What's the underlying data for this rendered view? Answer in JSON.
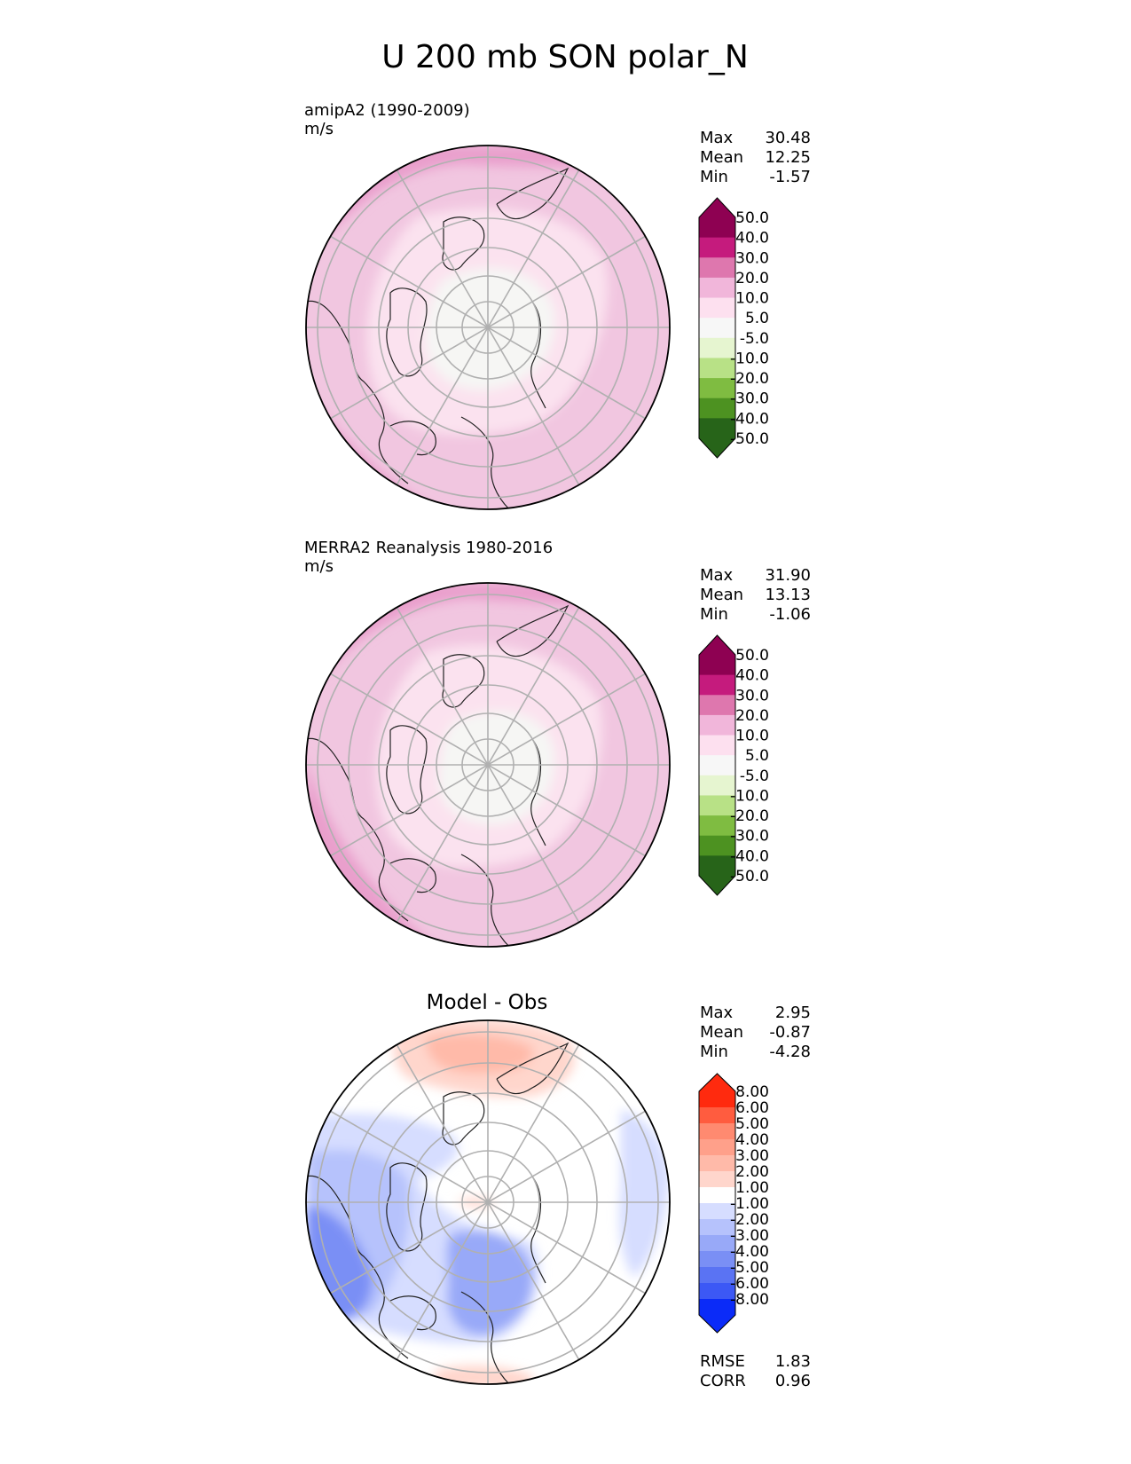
{
  "title": "U 200 mb SON polar_N",
  "panels": [
    {
      "id": "test",
      "label_line1": "amipA2 (1990-2009)",
      "label_line2": "m/s",
      "heading": "",
      "stats": [
        {
          "name": "Max",
          "value": "30.48"
        },
        {
          "name": "Mean",
          "value": "12.25"
        },
        {
          "name": "Min",
          "value": "-1.57"
        }
      ],
      "colorbar": {
        "ticks": [
          "50.0",
          "40.0",
          "30.0",
          "20.0",
          "10.0",
          "5.0",
          "-5.0",
          "-10.0",
          "-20.0",
          "-30.0",
          "-40.0",
          "-50.0"
        ],
        "colors_top_to_bottom": [
          "#8e0152",
          "#c51b7d",
          "#de77ae",
          "#f1b6da",
          "#fde0ef",
          "#f7f7f7",
          "#e6f5d0",
          "#b8e186",
          "#7fbc41",
          "#4d9221",
          "#276419"
        ],
        "max_color": "#8e0152",
        "min_color": "#276419"
      },
      "extra_stats": []
    },
    {
      "id": "ref",
      "label_line1": "MERRA2 Reanalysis 1980-2016",
      "label_line2": "m/s",
      "heading": "",
      "stats": [
        {
          "name": "Max",
          "value": "31.90"
        },
        {
          "name": "Mean",
          "value": "13.13"
        },
        {
          "name": "Min",
          "value": "-1.06"
        }
      ],
      "colorbar": {
        "ticks": [
          "50.0",
          "40.0",
          "30.0",
          "20.0",
          "10.0",
          "5.0",
          "-5.0",
          "-10.0",
          "-20.0",
          "-30.0",
          "-40.0",
          "-50.0"
        ],
        "colors_top_to_bottom": [
          "#8e0152",
          "#c51b7d",
          "#de77ae",
          "#f1b6da",
          "#fde0ef",
          "#f7f7f7",
          "#e6f5d0",
          "#b8e186",
          "#7fbc41",
          "#4d9221",
          "#276419"
        ],
        "max_color": "#8e0152",
        "min_color": "#276419"
      },
      "extra_stats": []
    },
    {
      "id": "diff",
      "label_line1": "",
      "label_line2": "",
      "heading": "Model - Obs",
      "stats": [
        {
          "name": "Max",
          "value": "2.95"
        },
        {
          "name": "Mean",
          "value": "-0.87"
        },
        {
          "name": "Min",
          "value": "-4.28"
        }
      ],
      "colorbar": {
        "ticks": [
          "8.00",
          "6.00",
          "5.00",
          "4.00",
          "3.00",
          "2.00",
          "1.00",
          "-1.00",
          "-2.00",
          "-3.00",
          "-4.00",
          "-5.00",
          "-6.00",
          "-8.00"
        ],
        "colors_top_to_bottom": [
          "#ff2a0e",
          "#ff5c3f",
          "#ff8a70",
          "#ffa08a",
          "#ffbaa9",
          "#ffd6cc",
          "#ffffff",
          "#d6ddff",
          "#b6c2fc",
          "#98a9f8",
          "#7a8ff5",
          "#5a73f3",
          "#3c58f5",
          "#0b2bf8"
        ],
        "max_color": "#ff2a0e",
        "min_color": "#0b2bf8"
      },
      "extra_stats": [
        {
          "name": "RMSE",
          "value": "1.83"
        },
        {
          "name": "CORR",
          "value": "0.96"
        }
      ]
    }
  ]
}
